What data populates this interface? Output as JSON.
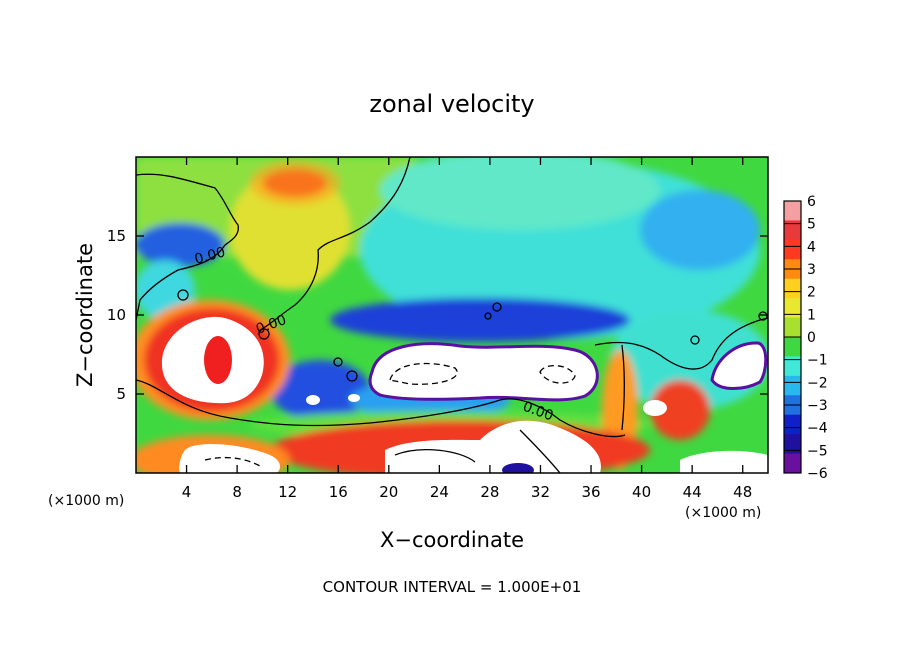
{
  "chart_data": {
    "type": "heatmap",
    "title": "zonal velocity",
    "xlabel": "X−coordinate",
    "ylabel": "Z−coordinate",
    "x_unit_left": "(×1000 m)",
    "x_unit_right": "(×1000 m)",
    "xlim": [
      0,
      50
    ],
    "ylim": [
      0,
      20
    ],
    "xticks": [
      4,
      8,
      12,
      16,
      20,
      24,
      28,
      32,
      36,
      40,
      44,
      48
    ],
    "yticks": [
      5,
      10,
      15
    ],
    "colorbar": {
      "levels": [
        6,
        5,
        4,
        3,
        2,
        1,
        0,
        -1,
        -2,
        -3,
        -4,
        -5,
        -6
      ],
      "label_text": [
        "6",
        "5",
        "4",
        "3",
        "2",
        "1",
        "0",
        "−1",
        "−2",
        "−3",
        "−4",
        "−5",
        "−6"
      ],
      "colors": [
        "#f4a0a0",
        "#e83a3a",
        "#ff3a20",
        "#ff8a10",
        "#ffd020",
        "#e8e830",
        "#a8e030",
        "#40d840",
        "#40e8d8",
        "#28b8f0",
        "#2070e0",
        "#1020c8",
        "#2010a0",
        "#6a10a0"
      ]
    },
    "contour_labels": [
      "0.00",
      "0.00",
      "0.00"
    ],
    "footnote": "CONTOUR INTERVAL = 1.000E+01",
    "features": [
      {
        "kind": "blob",
        "x": 6,
        "z": 6.5,
        "rx": 3.5,
        "rz": 2.6,
        "value": 8
      },
      {
        "kind": "blob",
        "x": 29,
        "z": 6.8,
        "rx": 8,
        "rz": 1.5,
        "value": -8
      },
      {
        "kind": "blob",
        "x": 47,
        "z": 6.8,
        "rx": 2,
        "rz": 1.4,
        "value": -8
      },
      {
        "kind": "blob",
        "x": 10,
        "z": 1.0,
        "rx": 6,
        "rz": 1.2,
        "value": 8
      },
      {
        "kind": "blob",
        "x": 30,
        "z": 2.0,
        "rx": 6,
        "rz": 1.5,
        "value": 8
      },
      {
        "kind": "blob",
        "x": 10.5,
        "z": 18.3,
        "rx": 2.5,
        "rz": 0.9,
        "value": 4.5
      }
    ]
  }
}
